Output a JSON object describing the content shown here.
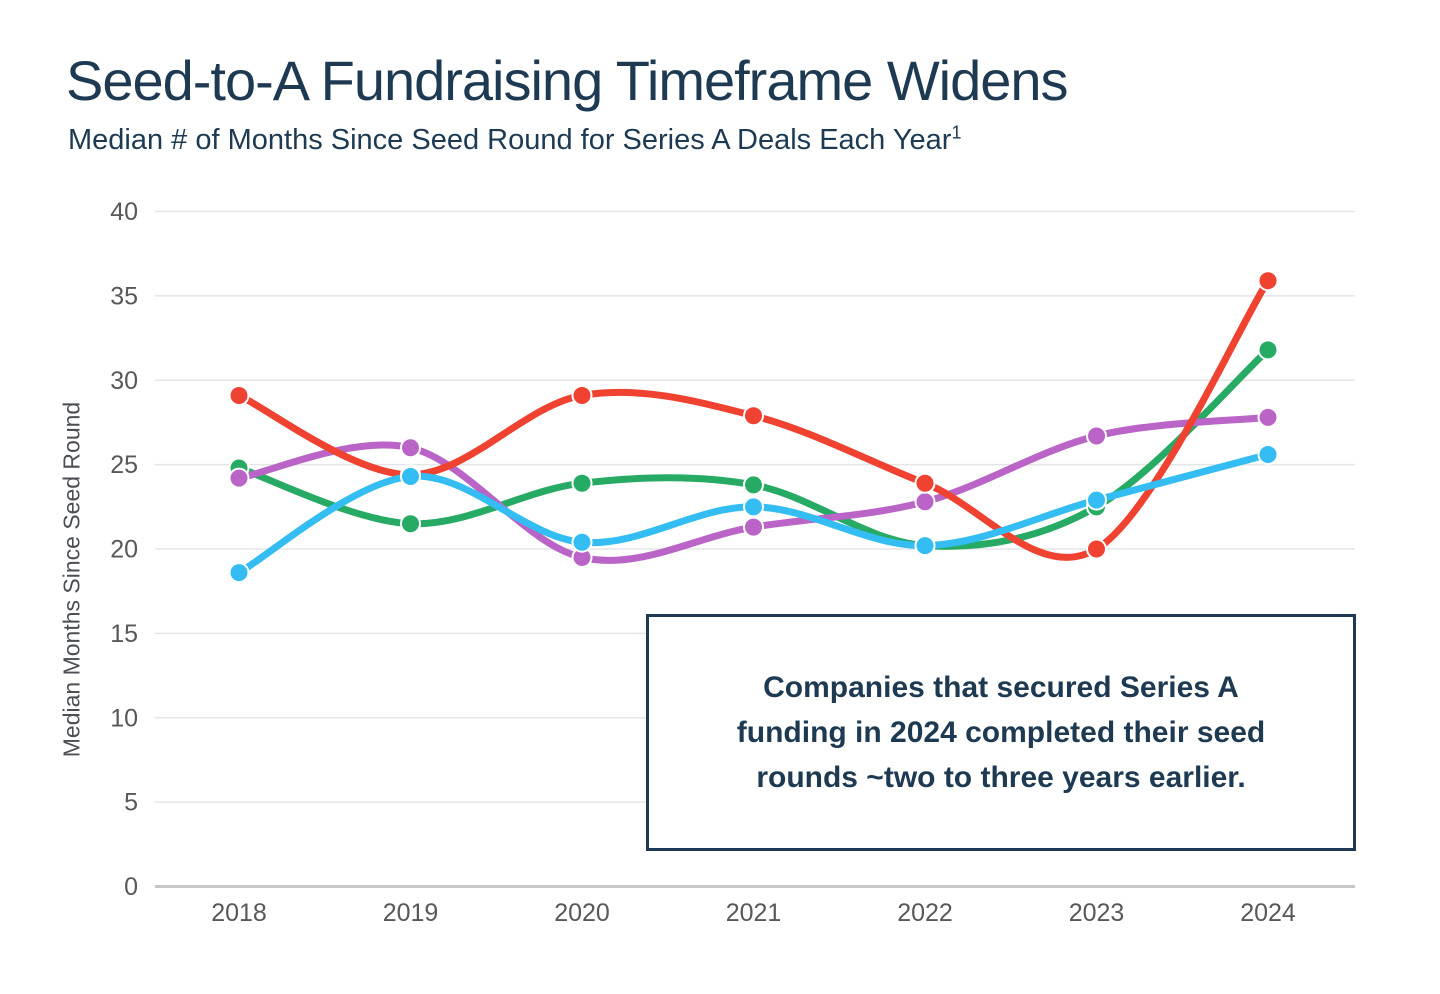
{
  "colors": {
    "title_text": "#1e3a52",
    "axis_text": "#58585a",
    "axis_title_text": "#4b4f54",
    "gridline": "#e4e5e7",
    "zero_axis_line": "#c6c7c9",
    "annotation_border": "#1e3a52",
    "background": "#ffffff"
  },
  "chart_data": {
    "type": "line",
    "title": "Seed-to-A Fundraising Timeframe Widens",
    "subtitle": "Median # of Months Since Seed Round for Series A Deals Each Year",
    "footnote_marker": "1",
    "x": [
      "2018",
      "2019",
      "2020",
      "2021",
      "2022",
      "2023",
      "2024"
    ],
    "series": [
      {
        "name": "green-series",
        "color": "#27ab64",
        "values": [
          24.8,
          21.5,
          23.9,
          23.8,
          20.2,
          22.5,
          31.8
        ]
      },
      {
        "name": "purple-series",
        "color": "#b964c6",
        "values": [
          24.2,
          26.0,
          19.5,
          21.3,
          22.8,
          26.7,
          27.8
        ]
      },
      {
        "name": "red-series",
        "color": "#ef4230",
        "values": [
          29.1,
          24.4,
          29.1,
          27.9,
          23.9,
          20.0,
          35.9
        ]
      },
      {
        "name": "blue-series",
        "color": "#33bdf2",
        "values": [
          18.6,
          24.3,
          20.4,
          22.5,
          20.2,
          22.9,
          25.6
        ]
      }
    ],
    "xlabel": "",
    "ylabel": "Median Months Since Seed Round",
    "ylim": [
      0,
      40
    ],
    "ytick_step": 5,
    "grid": true,
    "legend": "none",
    "curve": "smooth",
    "annotation": {
      "text": "Companies that secured Series A\nfunding in 2024 completed their seed\nrounds ~two to three years earlier."
    }
  }
}
